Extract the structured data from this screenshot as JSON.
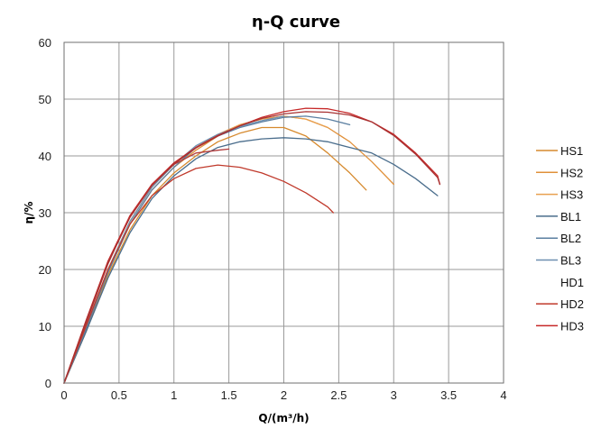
{
  "chart_data": {
    "type": "line",
    "title": "η-Q  curve",
    "xlabel": "Q/(m³/h)",
    "ylabel": "η/%",
    "xlim": [
      0,
      4
    ],
    "ylim": [
      0,
      60
    ],
    "xticks": [
      0,
      0.5,
      1,
      1.5,
      2,
      2.5,
      3,
      3.5,
      4
    ],
    "yticks": [
      0,
      10,
      20,
      30,
      40,
      50,
      60
    ],
    "grid": true,
    "legend_position": "right",
    "series": [
      {
        "name": "HS1",
        "color": "#d68a2e",
        "points": [
          [
            0,
            0
          ],
          [
            0.2,
            9
          ],
          [
            0.4,
            19
          ],
          [
            0.6,
            27
          ],
          [
            0.8,
            33
          ],
          [
            1.0,
            37
          ],
          [
            1.2,
            40
          ],
          [
            1.4,
            42.5
          ],
          [
            1.6,
            44
          ],
          [
            1.8,
            45
          ],
          [
            2.0,
            45
          ],
          [
            2.2,
            43.5
          ],
          [
            2.4,
            40.5
          ],
          [
            2.6,
            37
          ],
          [
            2.75,
            34
          ]
        ]
      },
      {
        "name": "HS2",
        "color": "#e0903a",
        "points": [
          [
            0,
            0
          ],
          [
            0.2,
            9.5
          ],
          [
            0.4,
            19.5
          ],
          [
            0.6,
            28
          ],
          [
            0.8,
            34
          ],
          [
            1.0,
            38
          ],
          [
            1.2,
            41
          ],
          [
            1.4,
            43.5
          ],
          [
            1.6,
            45.5
          ],
          [
            1.8,
            46.5
          ],
          [
            2.0,
            47
          ],
          [
            2.2,
            46.5
          ],
          [
            2.4,
            45
          ],
          [
            2.6,
            42.5
          ],
          [
            2.8,
            39
          ],
          [
            3.0,
            35
          ]
        ]
      },
      {
        "name": "HS3",
        "color": "#e8a050",
        "points": [
          [
            0,
            0
          ],
          [
            0.2,
            10
          ],
          [
            0.4,
            20
          ],
          [
            0.6,
            28.5
          ],
          [
            0.8,
            34.5
          ],
          [
            1.0,
            38.5
          ],
          [
            1.2,
            41.5
          ],
          [
            1.4,
            43.8
          ],
          [
            1.6,
            45.5
          ],
          [
            1.8,
            46.5
          ],
          [
            2.0,
            47
          ],
          [
            2.2,
            46.5
          ],
          [
            2.4,
            45
          ]
        ]
      },
      {
        "name": "BL1",
        "color": "#4a6d8c",
        "points": [
          [
            0,
            0
          ],
          [
            0.2,
            9
          ],
          [
            0.4,
            18.5
          ],
          [
            0.6,
            26.5
          ],
          [
            0.8,
            32.5
          ],
          [
            1.0,
            36.5
          ],
          [
            1.2,
            39.5
          ],
          [
            1.4,
            41.5
          ],
          [
            1.6,
            42.5
          ],
          [
            1.8,
            43
          ],
          [
            2.0,
            43.2
          ],
          [
            2.2,
            43
          ],
          [
            2.4,
            42.5
          ],
          [
            2.6,
            41.5
          ],
          [
            2.8,
            40.5
          ],
          [
            3.0,
            38.5
          ],
          [
            3.2,
            36
          ],
          [
            3.4,
            33
          ]
        ]
      },
      {
        "name": "BL2",
        "color": "#5b7fa1",
        "points": [
          [
            0,
            0
          ],
          [
            0.2,
            9.5
          ],
          [
            0.4,
            19.5
          ],
          [
            0.6,
            28
          ],
          [
            0.8,
            34
          ],
          [
            1.0,
            38
          ],
          [
            1.2,
            41.5
          ],
          [
            1.4,
            43.5
          ],
          [
            1.6,
            45
          ],
          [
            1.8,
            46
          ],
          [
            2.0,
            46.8
          ],
          [
            2.2,
            47
          ],
          [
            2.4,
            46.5
          ],
          [
            2.6,
            45.5
          ]
        ]
      },
      {
        "name": "BL3",
        "color": "#6d8fb0",
        "points": [
          [
            0,
            0
          ],
          [
            0.2,
            10
          ],
          [
            0.4,
            20
          ],
          [
            0.6,
            28.5
          ],
          [
            0.8,
            34.5
          ],
          [
            1.0,
            38.5
          ],
          [
            1.2,
            41.8
          ],
          [
            1.4,
            43.8
          ],
          [
            1.6,
            45.2
          ],
          [
            1.8,
            46.2
          ],
          [
            2.0,
            47
          ]
        ]
      },
      {
        "name": "HD1",
        "color": "#b23b3b",
        "points": [
          [
            0,
            0
          ],
          [
            0.2,
            10.5
          ],
          [
            0.4,
            21
          ],
          [
            0.6,
            29.5
          ],
          [
            0.8,
            35
          ],
          [
            1.0,
            38.5
          ],
          [
            1.2,
            40.5
          ],
          [
            1.4,
            41
          ],
          [
            1.5,
            41.2
          ]
        ]
      },
      {
        "name": "HD2",
        "color": "#c0392b",
        "points": [
          [
            0,
            0
          ],
          [
            0.2,
            10
          ],
          [
            0.4,
            20
          ],
          [
            0.6,
            28
          ],
          [
            0.8,
            33
          ],
          [
            1.0,
            36
          ],
          [
            1.2,
            37.8
          ],
          [
            1.4,
            38.4
          ],
          [
            1.6,
            38
          ],
          [
            1.8,
            37
          ],
          [
            2.0,
            35.5
          ],
          [
            2.2,
            33.5
          ],
          [
            2.4,
            31
          ],
          [
            2.45,
            30
          ]
        ]
      },
      {
        "name": "HD3",
        "color": "#c62828",
        "points": [
          [
            0,
            0
          ],
          [
            0.2,
            11
          ],
          [
            0.4,
            21.5
          ],
          [
            0.6,
            29.5
          ],
          [
            0.8,
            35
          ],
          [
            1.0,
            38.8
          ],
          [
            1.2,
            41.5
          ],
          [
            1.4,
            43.6
          ],
          [
            1.6,
            45.3
          ],
          [
            1.8,
            46.8
          ],
          [
            2.0,
            47.8
          ],
          [
            2.2,
            48.4
          ],
          [
            2.4,
            48.3
          ],
          [
            2.6,
            47.5
          ],
          [
            2.8,
            46
          ],
          [
            3.0,
            43.8
          ],
          [
            3.2,
            40.5
          ],
          [
            3.4,
            36.5
          ],
          [
            3.42,
            35
          ]
        ]
      },
      {
        "name": "",
        "color": "#a83232",
        "points": [
          [
            0,
            0
          ],
          [
            0.2,
            10.8
          ],
          [
            0.4,
            21.2
          ],
          [
            0.6,
            29.2
          ],
          [
            0.8,
            34.8
          ],
          [
            1.0,
            38.6
          ],
          [
            1.2,
            41.4
          ],
          [
            1.4,
            43.5
          ],
          [
            1.6,
            45.3
          ],
          [
            1.8,
            46.6
          ],
          [
            2.0,
            47.4
          ],
          [
            2.2,
            47.8
          ],
          [
            2.4,
            47.7
          ],
          [
            2.6,
            47.2
          ],
          [
            2.8,
            46
          ],
          [
            3.0,
            43.6
          ],
          [
            3.2,
            40.3
          ],
          [
            3.4,
            36.2
          ],
          [
            3.42,
            35
          ]
        ]
      }
    ]
  }
}
